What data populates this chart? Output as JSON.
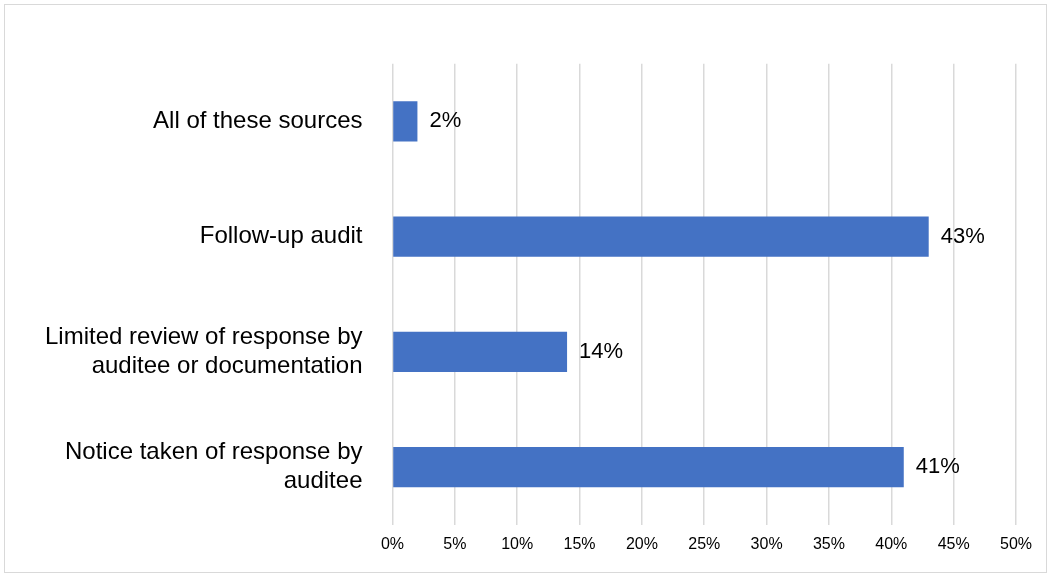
{
  "chart_data": {
    "type": "bar",
    "orientation": "horizontal",
    "categories": [
      "All of these sources",
      "Follow-up audit",
      "Limited review of response by auditee or documentation",
      "Notice taken of response by auditee"
    ],
    "values": [
      2,
      43,
      14,
      41
    ],
    "value_labels": [
      "2%",
      "43%",
      "14%",
      "41%"
    ],
    "color": "#4472c4",
    "xlim": [
      0,
      50
    ],
    "xticks": [
      {
        "value": 0,
        "label": "0%"
      },
      {
        "value": 5,
        "label": "5%"
      },
      {
        "value": 10,
        "label": "10%"
      },
      {
        "value": 15,
        "label": "15%"
      },
      {
        "value": 20,
        "label": "20%"
      },
      {
        "value": 25,
        "label": "25%"
      },
      {
        "value": 30,
        "label": "30%"
      },
      {
        "value": 35,
        "label": "35%"
      },
      {
        "value": 40,
        "label": "40%"
      },
      {
        "value": 45,
        "label": "45%"
      },
      {
        "value": 50,
        "label": "50%"
      }
    ],
    "grid": "x"
  }
}
